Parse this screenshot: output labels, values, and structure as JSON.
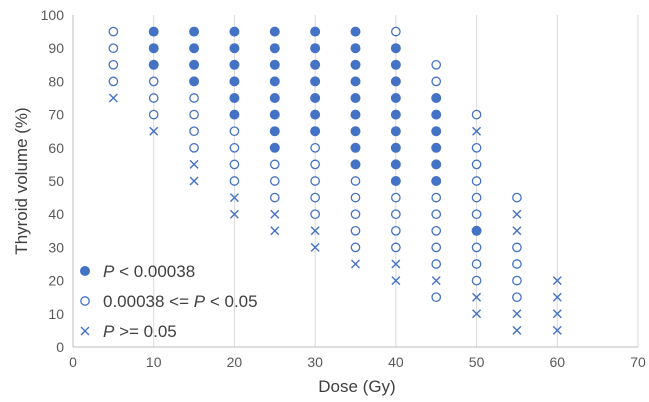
{
  "chart_data": {
    "type": "scatter",
    "xlabel": "Dose (Gy)",
    "ylabel": "Thyroid volume (%)",
    "xlim": [
      0,
      70
    ],
    "ylim": [
      0,
      100
    ],
    "x_ticks": [
      0,
      10,
      20,
      30,
      40,
      50,
      60,
      70
    ],
    "y_ticks": [
      0,
      10,
      20,
      30,
      40,
      50,
      60,
      70,
      80,
      90,
      100
    ],
    "grid": "vertical",
    "legend_position": "bottom-left",
    "colors": {
      "marker": "#4472c4"
    },
    "legend": [
      {
        "key": "p_low",
        "marker": "filled-circle",
        "italic": "P",
        "text": " < 0.00038"
      },
      {
        "key": "p_mid",
        "marker": "open-circle",
        "prefix": "0.00038 <= ",
        "italic": "P",
        "text": " < 0.05"
      },
      {
        "key": "p_high",
        "marker": "cross",
        "italic": "P",
        "text": " >= 0.05"
      }
    ],
    "series": [
      {
        "key": "p_low",
        "marker": "filled-circle",
        "points": [
          [
            10,
            95
          ],
          [
            10,
            90
          ],
          [
            10,
            85
          ],
          [
            15,
            95
          ],
          [
            15,
            90
          ],
          [
            15,
            85
          ],
          [
            15,
            80
          ],
          [
            20,
            95
          ],
          [
            20,
            90
          ],
          [
            20,
            85
          ],
          [
            20,
            80
          ],
          [
            20,
            75
          ],
          [
            20,
            70
          ],
          [
            25,
            95
          ],
          [
            25,
            90
          ],
          [
            25,
            85
          ],
          [
            25,
            80
          ],
          [
            25,
            75
          ],
          [
            25,
            70
          ],
          [
            25,
            65
          ],
          [
            25,
            60
          ],
          [
            30,
            95
          ],
          [
            30,
            90
          ],
          [
            30,
            85
          ],
          [
            30,
            80
          ],
          [
            30,
            75
          ],
          [
            30,
            70
          ],
          [
            30,
            65
          ],
          [
            35,
            95
          ],
          [
            35,
            90
          ],
          [
            35,
            85
          ],
          [
            35,
            80
          ],
          [
            35,
            75
          ],
          [
            35,
            70
          ],
          [
            35,
            65
          ],
          [
            35,
            60
          ],
          [
            35,
            55
          ],
          [
            40,
            90
          ],
          [
            40,
            85
          ],
          [
            40,
            80
          ],
          [
            40,
            75
          ],
          [
            40,
            70
          ],
          [
            40,
            65
          ],
          [
            40,
            60
          ],
          [
            40,
            55
          ],
          [
            40,
            50
          ],
          [
            45,
            75
          ],
          [
            45,
            70
          ],
          [
            45,
            65
          ],
          [
            45,
            60
          ],
          [
            45,
            55
          ],
          [
            45,
            50
          ],
          [
            50,
            35
          ]
        ]
      },
      {
        "key": "p_mid",
        "marker": "open-circle",
        "points": [
          [
            5,
            95
          ],
          [
            5,
            90
          ],
          [
            5,
            85
          ],
          [
            5,
            80
          ],
          [
            10,
            80
          ],
          [
            10,
            75
          ],
          [
            10,
            70
          ],
          [
            15,
            75
          ],
          [
            15,
            70
          ],
          [
            15,
            65
          ],
          [
            15,
            60
          ],
          [
            20,
            65
          ],
          [
            20,
            60
          ],
          [
            20,
            55
          ],
          [
            20,
            50
          ],
          [
            25,
            55
          ],
          [
            25,
            50
          ],
          [
            25,
            45
          ],
          [
            30,
            60
          ],
          [
            30,
            55
          ],
          [
            30,
            50
          ],
          [
            30,
            45
          ],
          [
            30,
            40
          ],
          [
            35,
            50
          ],
          [
            35,
            45
          ],
          [
            35,
            40
          ],
          [
            35,
            35
          ],
          [
            35,
            30
          ],
          [
            40,
            95
          ],
          [
            40,
            45
          ],
          [
            40,
            40
          ],
          [
            40,
            35
          ],
          [
            40,
            30
          ],
          [
            45,
            85
          ],
          [
            45,
            80
          ],
          [
            45,
            45
          ],
          [
            45,
            40
          ],
          [
            45,
            35
          ],
          [
            45,
            30
          ],
          [
            45,
            25
          ],
          [
            45,
            15
          ],
          [
            50,
            70
          ],
          [
            50,
            60
          ],
          [
            50,
            55
          ],
          [
            50,
            50
          ],
          [
            50,
            45
          ],
          [
            50,
            40
          ],
          [
            50,
            30
          ],
          [
            50,
            25
          ],
          [
            50,
            20
          ],
          [
            55,
            45
          ],
          [
            55,
            30
          ],
          [
            55,
            25
          ],
          [
            55,
            20
          ],
          [
            55,
            15
          ]
        ]
      },
      {
        "key": "p_high",
        "marker": "cross",
        "points": [
          [
            5,
            75
          ],
          [
            10,
            65
          ],
          [
            15,
            55
          ],
          [
            15,
            50
          ],
          [
            20,
            45
          ],
          [
            20,
            40
          ],
          [
            25,
            40
          ],
          [
            25,
            35
          ],
          [
            30,
            35
          ],
          [
            30,
            30
          ],
          [
            35,
            25
          ],
          [
            40,
            25
          ],
          [
            40,
            20
          ],
          [
            45,
            20
          ],
          [
            50,
            65
          ],
          [
            50,
            15
          ],
          [
            50,
            10
          ],
          [
            55,
            40
          ],
          [
            55,
            35
          ],
          [
            55,
            10
          ],
          [
            55,
            5
          ],
          [
            60,
            20
          ],
          [
            60,
            15
          ],
          [
            60,
            10
          ],
          [
            60,
            5
          ]
        ]
      }
    ]
  }
}
